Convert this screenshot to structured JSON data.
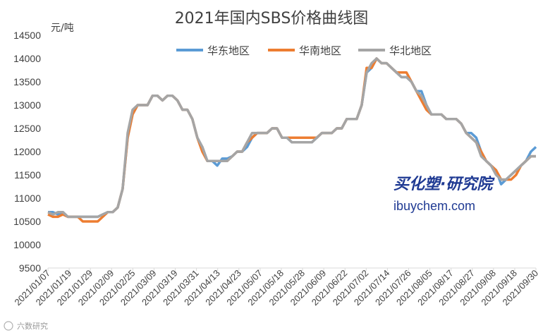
{
  "chart_data": {
    "type": "line",
    "title": "2021年国内SBS价格曲线图",
    "ylabel": "元/吨",
    "ylim": [
      9500,
      14500
    ],
    "yticks": [
      9500,
      10000,
      10500,
      11000,
      11500,
      12000,
      12500,
      13000,
      13500,
      14000,
      14500
    ],
    "xticks": [
      "2021/01/07",
      "2021/01/19",
      "2021/01/29",
      "2021/02/09",
      "2021/02/25",
      "2021/03/09",
      "2021/03/19",
      "2021/03/31",
      "2021/04/13",
      "2021/04/23",
      "2021/05/07",
      "2021/05/18",
      "2021/05/28",
      "2021/06/09",
      "2021/06/22",
      "2021/07/02",
      "2021/07/14",
      "2021/07/26",
      "2021/08/05",
      "2021/08/17",
      "2021/08/27",
      "2021/09/08",
      "2021/09/18",
      "2021/09/30"
    ],
    "legend_position": "top",
    "grid": false,
    "series": [
      {
        "name": "华东地区",
        "color": "#5b9bd5",
        "values": [
          10700,
          10700,
          10650,
          10700,
          10600,
          10600,
          10600,
          10600,
          10600,
          10600,
          10600,
          10650,
          10700,
          10700,
          10800,
          11200,
          12300,
          12800,
          13000,
          13000,
          13000,
          13200,
          13200,
          13100,
          13200,
          13200,
          13100,
          12900,
          12900,
          12700,
          12300,
          12100,
          11800,
          11800,
          11700,
          11850,
          11850,
          11900,
          12000,
          12000,
          12100,
          12300,
          12400,
          12400,
          12400,
          12500,
          12500,
          12300,
          12300,
          12200,
          12200,
          12200,
          12200,
          12200,
          12300,
          12400,
          12400,
          12400,
          12500,
          12500,
          12700,
          12700,
          12700,
          13000,
          13700,
          13800,
          14000,
          13900,
          13900,
          13800,
          13700,
          13600,
          13600,
          13500,
          13300,
          13300,
          13000,
          12800,
          12800,
          12800,
          12700,
          12700,
          12700,
          12600,
          12400,
          12400,
          12300,
          12000,
          11800,
          11700,
          11600,
          11300,
          11400,
          11500,
          11600,
          11700,
          11800,
          12000,
          12100
        ]
      },
      {
        "name": "华南地区",
        "color": "#ed7d31",
        "values": [
          10650,
          10600,
          10600,
          10650,
          10600,
          10600,
          10600,
          10500,
          10500,
          10500,
          10500,
          10600,
          10700,
          10700,
          10800,
          11200,
          12300,
          12800,
          13000,
          13000,
          13000,
          13200,
          13200,
          13100,
          13200,
          13200,
          13100,
          12900,
          12900,
          12700,
          12300,
          12000,
          11800,
          11800,
          11800,
          11800,
          11800,
          11900,
          12000,
          12000,
          12200,
          12300,
          12400,
          12400,
          12400,
          12500,
          12500,
          12300,
          12300,
          12300,
          12300,
          12300,
          12300,
          12300,
          12300,
          12400,
          12400,
          12400,
          12500,
          12500,
          12700,
          12700,
          12700,
          13000,
          13800,
          13800,
          14000,
          13900,
          13900,
          13800,
          13700,
          13700,
          13700,
          13500,
          13300,
          13100,
          12900,
          12800,
          12800,
          12800,
          12700,
          12700,
          12700,
          12600,
          12400,
          12300,
          12200,
          12000,
          11800,
          11700,
          11600,
          11400,
          11400,
          11400,
          11500,
          11700,
          11800,
          11900,
          11900
        ]
      },
      {
        "name": "华北地区",
        "color": "#a5a5a5",
        "values": [
          10700,
          10650,
          10700,
          10700,
          10600,
          10600,
          10600,
          10600,
          10600,
          10600,
          10600,
          10650,
          10700,
          10700,
          10800,
          11200,
          12400,
          12900,
          13000,
          13000,
          13000,
          13200,
          13200,
          13100,
          13200,
          13200,
          13100,
          12900,
          12900,
          12700,
          12300,
          12100,
          11800,
          11800,
          11800,
          11800,
          11800,
          11900,
          12000,
          12000,
          12200,
          12400,
          12400,
          12400,
          12400,
          12500,
          12500,
          12300,
          12300,
          12200,
          12200,
          12200,
          12200,
          12200,
          12300,
          12400,
          12400,
          12400,
          12500,
          12500,
          12700,
          12700,
          12700,
          13000,
          13700,
          13900,
          14000,
          13900,
          13900,
          13800,
          13700,
          13600,
          13600,
          13500,
          13300,
          13200,
          13000,
          12800,
          12800,
          12800,
          12700,
          12700,
          12700,
          12600,
          12400,
          12300,
          12200,
          11900,
          11800,
          11700,
          11500,
          11400,
          11400,
          11500,
          11600,
          11700,
          11800,
          11900,
          11900
        ]
      }
    ]
  },
  "watermark": {
    "brand_cn": "买化塑·研究院",
    "brand_url": "ibuychem.com"
  },
  "corner_mark": "六数研究"
}
